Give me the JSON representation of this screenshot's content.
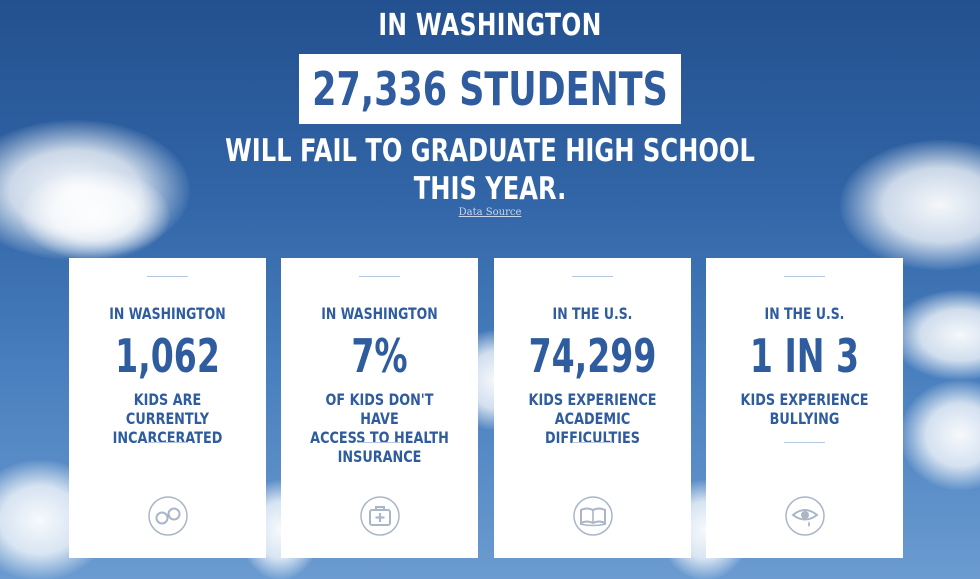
{
  "headline": {
    "location": "IN WASHINGTON",
    "count": "27,336 STUDENTS",
    "line1": "WILL FAIL TO GRADUATE HIGH SCHOOL",
    "line2": "THIS YEAR.",
    "data_source": "Data Source"
  },
  "colors": {
    "accent": "#2f5c9e",
    "card_bg": "#ffffff",
    "icon_stroke": "#aab6c8"
  },
  "cards": [
    {
      "location": "IN WASHINGTON",
      "number": "1,062",
      "desc_lines": [
        "KIDS ARE CURRENTLY",
        "INCARCERATED"
      ],
      "icon": "handcuffs-icon"
    },
    {
      "location": "IN WASHINGTON",
      "number": "7%",
      "desc_lines": [
        "OF KIDS DON'T HAVE",
        "ACCESS TO HEALTH",
        "INSURANCE"
      ],
      "icon": "medical-kit-icon"
    },
    {
      "location": "IN THE U.S.",
      "number": "74,299",
      "desc_lines": [
        "KIDS EXPERIENCE",
        "ACADEMIC DIFFICULTIES"
      ],
      "icon": "open-book-icon"
    },
    {
      "location": "IN THE U.S.",
      "number": "1 IN 3",
      "desc_lines": [
        "KIDS EXPERIENCE",
        "BULLYING"
      ],
      "icon": "crying-eye-icon"
    }
  ]
}
